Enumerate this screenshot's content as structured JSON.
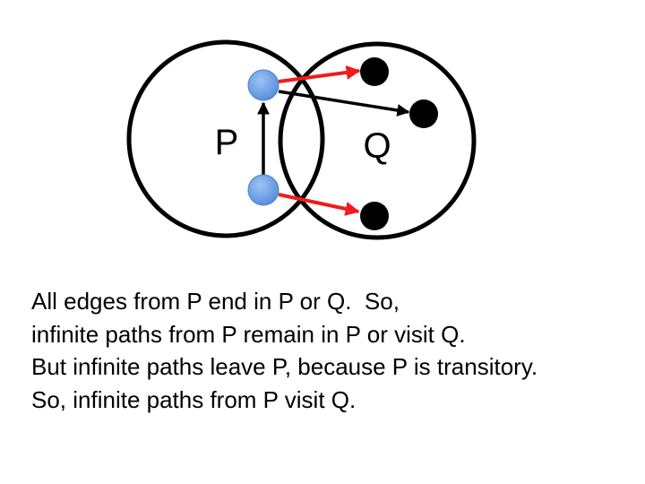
{
  "diagram": {
    "sets": [
      {
        "name": "P",
        "label": "P"
      },
      {
        "name": "Q",
        "label": "Q"
      }
    ],
    "colors": {
      "circle_stroke": "#000000",
      "node_blue": "#6a9fe6",
      "node_black": "#000000",
      "edge_red": "#ee1c1c",
      "edge_black": "#000000"
    },
    "nodes": [
      {
        "id": "p-top",
        "set": "P",
        "color": "blue"
      },
      {
        "id": "p-bottom",
        "set": "P",
        "color": "blue"
      },
      {
        "id": "q-top",
        "set": "Q",
        "color": "black"
      },
      {
        "id": "q-middle",
        "set": "Q",
        "color": "black"
      },
      {
        "id": "q-bottom",
        "set": "Q",
        "color": "black"
      }
    ],
    "edges": [
      {
        "from": "p-top",
        "to": "q-top",
        "color": "red"
      },
      {
        "from": "p-top",
        "to": "q-middle",
        "color": "black"
      },
      {
        "from": "p-bottom",
        "to": "p-top",
        "color": "black"
      },
      {
        "from": "p-bottom",
        "to": "q-bottom",
        "color": "red"
      }
    ]
  },
  "caption": {
    "lines": [
      "All edges from P end in P or Q.  So,",
      "infinite paths from P remain in P or visit Q.",
      "But infinite paths leave P, because P is transitory.",
      "So, infinite paths from P visit Q."
    ]
  }
}
